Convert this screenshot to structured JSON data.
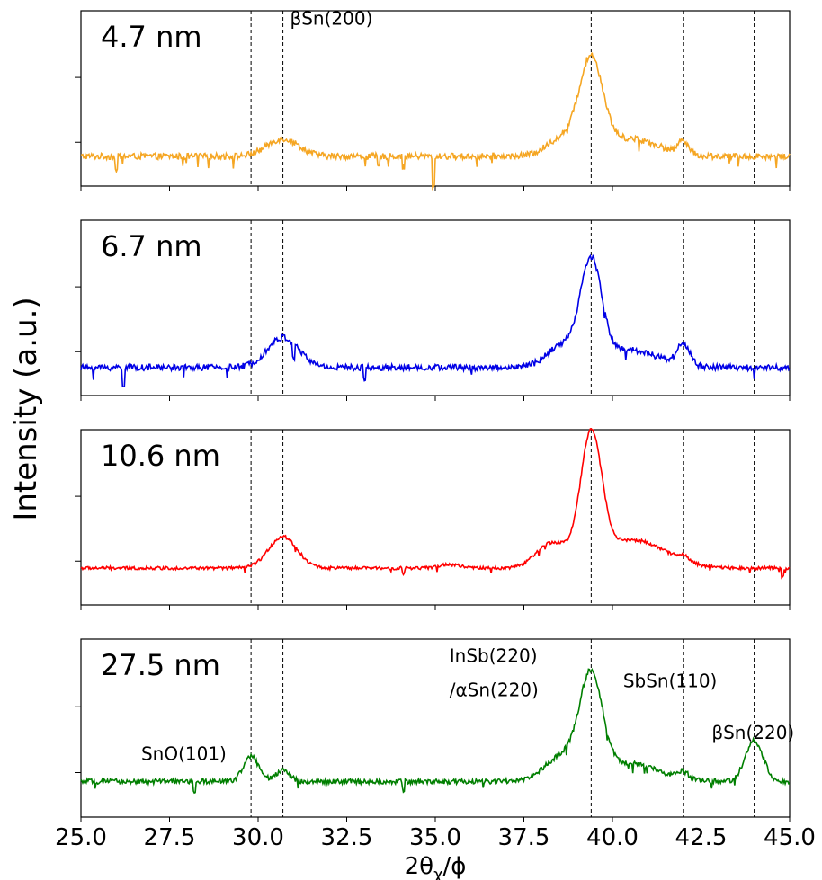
{
  "chart_data": {
    "type": "line",
    "ylabel": "Intensity (a.u.)",
    "xlabel_main": "2θ",
    "xlabel_sub": "χ",
    "xlabel_tail": "/ϕ",
    "xlim": [
      25.0,
      45.0
    ],
    "xticks": [
      "25.0",
      "27.5",
      "30.0",
      "32.5",
      "35.0",
      "37.5",
      "40.0",
      "42.5",
      "45.0"
    ],
    "xtick_values": [
      25.0,
      27.5,
      30.0,
      32.5,
      35.0,
      37.5,
      40.0,
      42.5,
      45.0
    ],
    "reference_lines": [
      29.8,
      30.7,
      39.4,
      42.0,
      44.0
    ],
    "annotations": [
      {
        "panel": 0,
        "text": "βSn(200)",
        "x": 30.9,
        "y": 0.92
      },
      {
        "panel": 3,
        "text": "SnO(101)",
        "x": 26.7,
        "y": 0.32
      },
      {
        "panel": 3,
        "text": "InSb(220)",
        "x": 35.4,
        "y": 0.87
      },
      {
        "panel": 3,
        "text": "/αSn(220)",
        "x": 35.4,
        "y": 0.68
      },
      {
        "panel": 3,
        "text": "SbSn(110)",
        "x": 40.3,
        "y": 0.73
      },
      {
        "panel": 3,
        "text": "βSn(220)",
        "x": 42.8,
        "y": 0.44
      }
    ],
    "panels": [
      {
        "label": "4.7 nm",
        "color": "#f5a623",
        "noise": 0.018,
        "base": 0.17,
        "peaks": [
          [
            30.7,
            0.1,
            0.45
          ],
          [
            38.6,
            0.1,
            0.45
          ],
          [
            39.4,
            0.52,
            0.33
          ],
          [
            40.5,
            0.1,
            0.8
          ],
          [
            42.0,
            0.08,
            0.14
          ]
        ],
        "dips": [
          [
            34.95,
            0.18
          ],
          [
            34.1,
            0.06
          ],
          [
            33.4,
            0.06
          ],
          [
            26.0,
            0.08
          ]
        ]
      },
      {
        "label": "6.7 nm",
        "color": "#0000e6",
        "noise": 0.018,
        "base": 0.16,
        "peaks": [
          [
            30.7,
            0.17,
            0.45
          ],
          [
            38.6,
            0.12,
            0.45
          ],
          [
            39.4,
            0.57,
            0.3
          ],
          [
            40.5,
            0.1,
            0.8
          ],
          [
            42.0,
            0.12,
            0.18
          ]
        ],
        "dips": [
          [
            26.2,
            0.1
          ],
          [
            31.0,
            0.08
          ],
          [
            33.0,
            0.06
          ]
        ]
      },
      {
        "label": "10.6 nm",
        "color": "#ff0000",
        "noise": 0.009,
        "base": 0.21,
        "peaks": [
          [
            30.7,
            0.18,
            0.4
          ],
          [
            38.3,
            0.14,
            0.45
          ],
          [
            39.4,
            0.72,
            0.3
          ],
          [
            40.6,
            0.16,
            0.9
          ],
          [
            42.0,
            0.03,
            0.15
          ],
          [
            35.4,
            0.02,
            0.3
          ]
        ],
        "dips": [
          [
            44.8,
            0.05
          ],
          [
            34.1,
            0.03
          ]
        ]
      },
      {
        "label": "27.5 nm",
        "color": "#007f00",
        "noise": 0.014,
        "base": 0.2,
        "peaks": [
          [
            29.8,
            0.14,
            0.22
          ],
          [
            30.7,
            0.06,
            0.2
          ],
          [
            38.6,
            0.14,
            0.5
          ],
          [
            39.4,
            0.55,
            0.32
          ],
          [
            40.5,
            0.1,
            0.8
          ],
          [
            42.0,
            0.04,
            0.16
          ],
          [
            44.0,
            0.23,
            0.25
          ]
        ],
        "dips": [
          [
            28.2,
            0.06
          ],
          [
            34.1,
            0.05
          ]
        ]
      }
    ]
  }
}
